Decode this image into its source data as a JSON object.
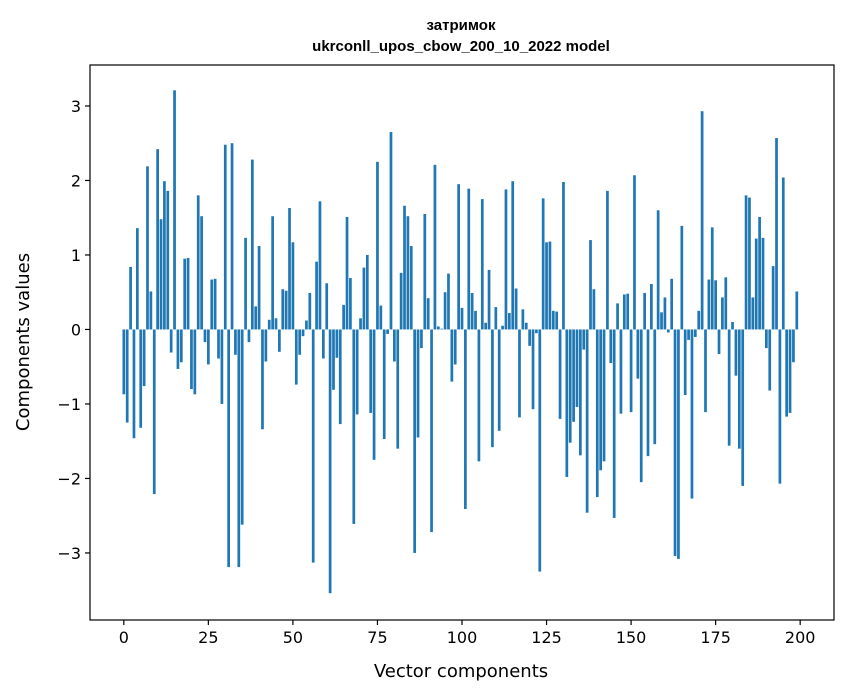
{
  "chart_data": {
    "type": "bar",
    "title": "затримок",
    "subtitle": "ukrconll_upos_cbow_200_10_2022 model",
    "xlabel": "Vector components",
    "ylabel": "Components values",
    "xlim": [
      -10,
      210
    ],
    "ylim": [
      -3.9,
      3.55
    ],
    "xticks": [
      0,
      25,
      50,
      75,
      100,
      125,
      150,
      175,
      200
    ],
    "xtick_labels": [
      "0",
      "25",
      "50",
      "75",
      "100",
      "125",
      "150",
      "175",
      "200"
    ],
    "yticks": [
      -3,
      -2,
      -1,
      0,
      1,
      2,
      3
    ],
    "ytick_labels": [
      "−3",
      "−2",
      "−1",
      "0",
      "1",
      "2",
      "3"
    ],
    "bar_color": "#1f77b4",
    "grid": false,
    "x": [
      0,
      1,
      2,
      3,
      4,
      5,
      6,
      7,
      8,
      9,
      10,
      11,
      12,
      13,
      14,
      15,
      16,
      17,
      18,
      19,
      20,
      21,
      22,
      23,
      24,
      25,
      26,
      27,
      28,
      29,
      30,
      31,
      32,
      33,
      34,
      35,
      36,
      37,
      38,
      39,
      40,
      41,
      42,
      43,
      44,
      45,
      46,
      47,
      48,
      49,
      50,
      51,
      52,
      53,
      54,
      55,
      56,
      57,
      58,
      59,
      60,
      61,
      62,
      63,
      64,
      65,
      66,
      67,
      68,
      69,
      70,
      71,
      72,
      73,
      74,
      75,
      76,
      77,
      78,
      79,
      80,
      81,
      82,
      83,
      84,
      85,
      86,
      87,
      88,
      89,
      90,
      91,
      92,
      93,
      94,
      95,
      96,
      97,
      98,
      99,
      100,
      101,
      102,
      103,
      104,
      105,
      106,
      107,
      108,
      109,
      110,
      111,
      112,
      113,
      114,
      115,
      116,
      117,
      118,
      119,
      120,
      121,
      122,
      123,
      124,
      125,
      126,
      127,
      128,
      129,
      130,
      131,
      132,
      133,
      134,
      135,
      136,
      137,
      138,
      139,
      140,
      141,
      142,
      143,
      144,
      145,
      146,
      147,
      148,
      149,
      150,
      151,
      152,
      153,
      154,
      155,
      156,
      157,
      158,
      159,
      160,
      161,
      162,
      163,
      164,
      165,
      166,
      167,
      168,
      169,
      170,
      171,
      172,
      173,
      174,
      175,
      176,
      177,
      178,
      179,
      180,
      181,
      182,
      183,
      184,
      185,
      186,
      187,
      188,
      189,
      190,
      191,
      192,
      193,
      194,
      195,
      196,
      197,
      198,
      199
    ],
    "values": [
      -0.87,
      -1.25,
      0.84,
      -1.46,
      1.36,
      -1.32,
      -0.76,
      2.19,
      0.51,
      -2.21,
      2.42,
      1.48,
      1.99,
      1.86,
      -0.31,
      3.21,
      -0.53,
      -0.44,
      0.95,
      0.96,
      -0.8,
      -0.87,
      1.8,
      1.52,
      -0.17,
      -0.47,
      0.67,
      0.68,
      -0.39,
      -1.0,
      2.48,
      -3.19,
      2.5,
      -0.34,
      -3.19,
      -2.62,
      1.23,
      -0.17,
      2.28,
      0.31,
      1.12,
      -1.34,
      -0.43,
      0.13,
      1.52,
      0.15,
      -0.3,
      0.54,
      0.52,
      1.63,
      1.17,
      -0.74,
      -0.34,
      -0.09,
      0.12,
      0.49,
      -3.13,
      0.91,
      1.72,
      -0.39,
      0.62,
      -3.54,
      -0.81,
      -0.38,
      -1.27,
      0.33,
      1.51,
      0.69,
      -2.61,
      -1.14,
      0.15,
      0.83,
      1.0,
      -1.12,
      -1.75,
      2.25,
      0.32,
      -1.47,
      -0.06,
      2.65,
      -0.43,
      -1.6,
      0.76,
      1.66,
      1.52,
      1.12,
      -3.0,
      -1.45,
      -0.25,
      1.55,
      0.42,
      -2.72,
      2.21,
      0.04,
      0.01,
      0.5,
      0.75,
      -0.7,
      -0.47,
      1.95,
      0.29,
      -2.41,
      1.89,
      0.49,
      0.25,
      -1.77,
      1.75,
      0.09,
      0.8,
      -1.58,
      0.3,
      -1.36,
      0.05,
      1.88,
      0.22,
      1.99,
      0.55,
      -1.18,
      0.27,
      0.09,
      -0.22,
      -1.07,
      -0.05,
      -3.25,
      1.76,
      1.17,
      1.18,
      0.25,
      0.24,
      -1.2,
      1.98,
      -1.98,
      -1.52,
      -1.24,
      -1.04,
      -1.69,
      -0.27,
      -2.46,
      1.2,
      0.54,
      -2.25,
      -1.89,
      -1.77,
      1.86,
      -0.45,
      -2.53,
      0.35,
      -1.13,
      0.47,
      0.48,
      -1.11,
      2.07,
      -0.66,
      -2.05,
      0.49,
      -1.7,
      0.61,
      -1.54,
      1.6,
      0.23,
      0.43,
      -0.04,
      0.68,
      -3.04,
      -3.08,
      1.39,
      -0.88,
      -0.14,
      -2.27,
      -0.1,
      0.25,
      2.93,
      -1.11,
      0.67,
      1.37,
      0.66,
      -0.33,
      0.43,
      0.7,
      -1.56,
      0.1,
      -0.62,
      -1.6,
      -2.1,
      1.8,
      1.77,
      0.43,
      1.22,
      1.51,
      1.23,
      -0.25,
      -0.82,
      0.85,
      2.57,
      -2.07,
      2.04,
      -1.17,
      -1.12,
      -0.44,
      0.51
    ]
  }
}
